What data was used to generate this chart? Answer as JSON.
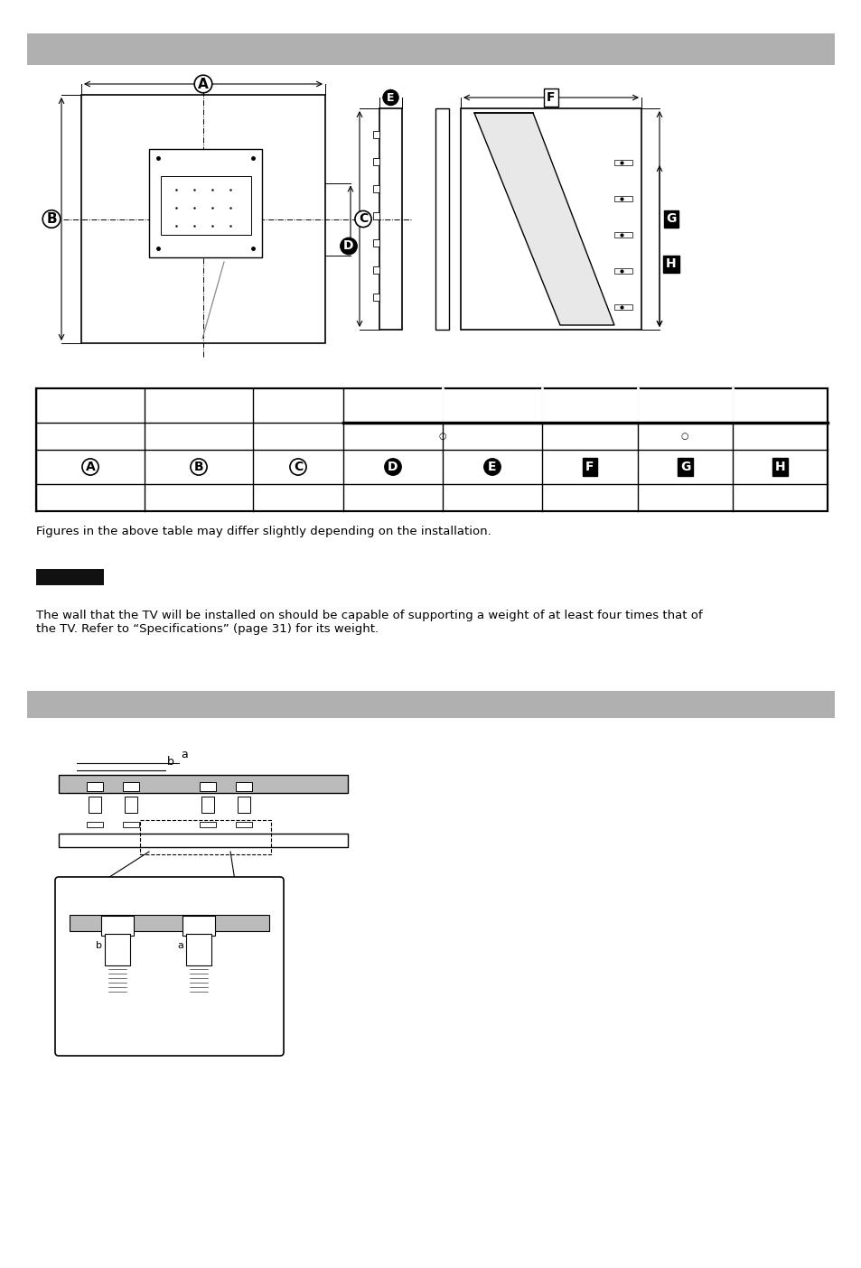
{
  "page_bg": "#ffffff",
  "header_bar_color": "#b0b0b0",
  "table_note": "Figures in the above table may differ slightly depending on the installation.",
  "warning_text": "The wall that the TV will be installed on should be capable of supporting a weight of at least four times that of\nthe TV. Refer to “Specifications” (page 31) for its weight.",
  "dim_label_a": "A",
  "dim_label_b": "B",
  "dim_label_c": "C",
  "dim_label_d": "D",
  "dim_label_e": "E",
  "dim_label_f": "F",
  "dim_label_g": "G",
  "dim_label_h": "H",
  "label_a_circle": true,
  "label_b_circle": true,
  "label_c_circle": true,
  "label_d_filled": true,
  "label_e_filled": true,
  "label_f_filled_box": true,
  "label_g_filled_box": true,
  "label_h_filled_box": true
}
